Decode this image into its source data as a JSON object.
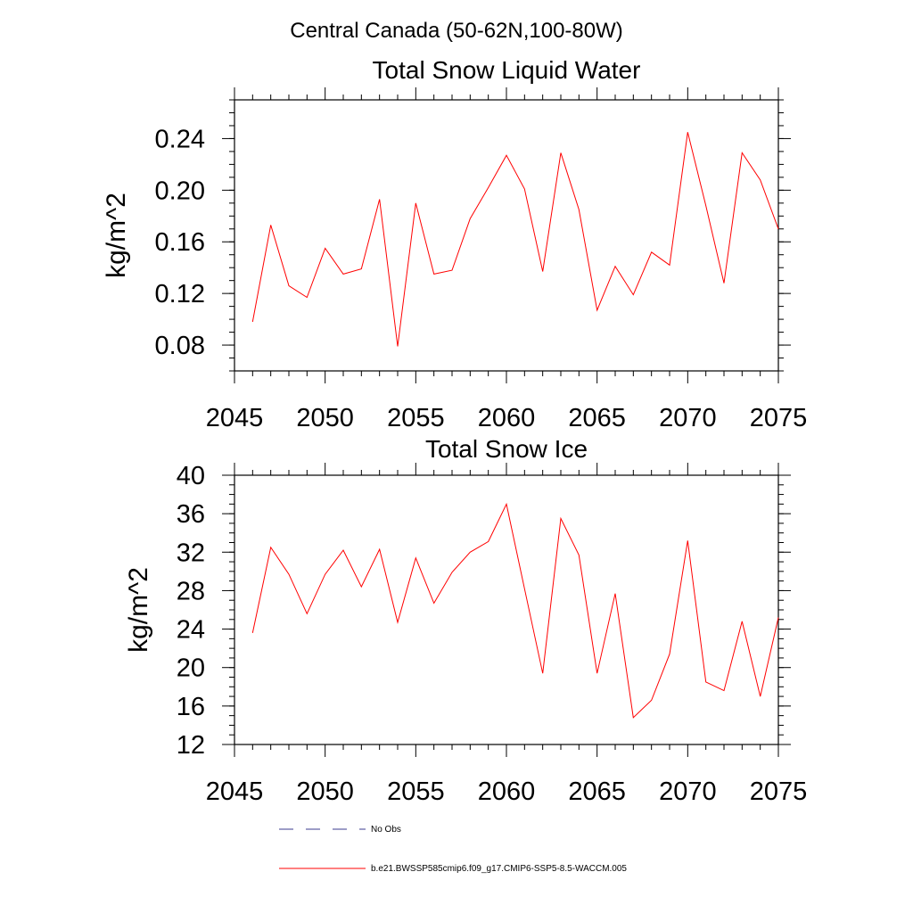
{
  "figure": {
    "suptitle": "Central Canada (50-62N,100-80W)"
  },
  "chart_data": [
    {
      "type": "line",
      "title": "Total Snow Liquid Water",
      "xlabel": "",
      "ylabel": "kg/m^2",
      "xlim": [
        2045,
        2075
      ],
      "ylim": [
        0.06,
        0.27
      ],
      "xticks": [
        "2045",
        "2050",
        "2055",
        "2060",
        "2065",
        "2070",
        "2075"
      ],
      "yticks": [
        "0.08",
        "0.12",
        "0.16",
        "0.20",
        "0.24"
      ],
      "x": [
        2046,
        2047,
        2048,
        2049,
        2050,
        2051,
        2052,
        2053,
        2054,
        2055,
        2056,
        2057,
        2058,
        2059,
        2060,
        2061,
        2062,
        2063,
        2064,
        2065,
        2066,
        2067,
        2068,
        2069,
        2070,
        2071,
        2072,
        2073,
        2074,
        2075
      ],
      "series": [
        {
          "name": "b.e21.BWSSP585cmip6.f09_g17.CMIP6-SSP5-8.5-WACCM.005",
          "color": "#ff0000",
          "values": [
            0.098,
            0.173,
            0.126,
            0.117,
            0.155,
            0.135,
            0.139,
            0.193,
            0.079,
            0.19,
            0.135,
            0.138,
            0.178,
            0.202,
            0.227,
            0.201,
            0.137,
            0.229,
            0.185,
            0.107,
            0.141,
            0.119,
            0.152,
            0.142,
            0.245,
            0.188,
            0.128,
            0.229,
            0.208,
            0.17
          ]
        }
      ]
    },
    {
      "type": "line",
      "title": "Total Snow Ice",
      "xlabel": "",
      "ylabel": "kg/m^2",
      "xlim": [
        2045,
        2075
      ],
      "ylim": [
        12,
        40
      ],
      "xticks": [
        "2045",
        "2050",
        "2055",
        "2060",
        "2065",
        "2070",
        "2075"
      ],
      "yticks": [
        "12",
        "16",
        "20",
        "24",
        "28",
        "32",
        "36",
        "40"
      ],
      "x": [
        2046,
        2047,
        2048,
        2049,
        2050,
        2051,
        2052,
        2053,
        2054,
        2055,
        2056,
        2057,
        2058,
        2059,
        2060,
        2061,
        2062,
        2063,
        2064,
        2065,
        2066,
        2067,
        2068,
        2069,
        2070,
        2071,
        2072,
        2073,
        2074,
        2075
      ],
      "series": [
        {
          "name": "b.e21.BWSSP585cmip6.f09_g17.CMIP6-SSP5-8.5-WACCM.005",
          "color": "#ff0000",
          "values": [
            23.6,
            32.5,
            29.7,
            25.6,
            29.7,
            32.2,
            28.4,
            32.3,
            24.7,
            31.4,
            26.7,
            29.9,
            32.0,
            33.1,
            37.0,
            28.2,
            19.4,
            35.5,
            31.7,
            19.4,
            27.7,
            14.8,
            16.6,
            21.4,
            33.2,
            18.5,
            17.6,
            24.8,
            17.0,
            25.2
          ]
        }
      ]
    }
  ],
  "legend": {
    "items": [
      {
        "label": "No Obs",
        "color": "#3b3b8f",
        "style": "dashed"
      },
      {
        "label": "b.e21.BWSSP585cmip6.f09_g17.CMIP6-SSP5-8.5-WACCM.005",
        "color": "#ff0000",
        "style": "solid"
      }
    ]
  }
}
